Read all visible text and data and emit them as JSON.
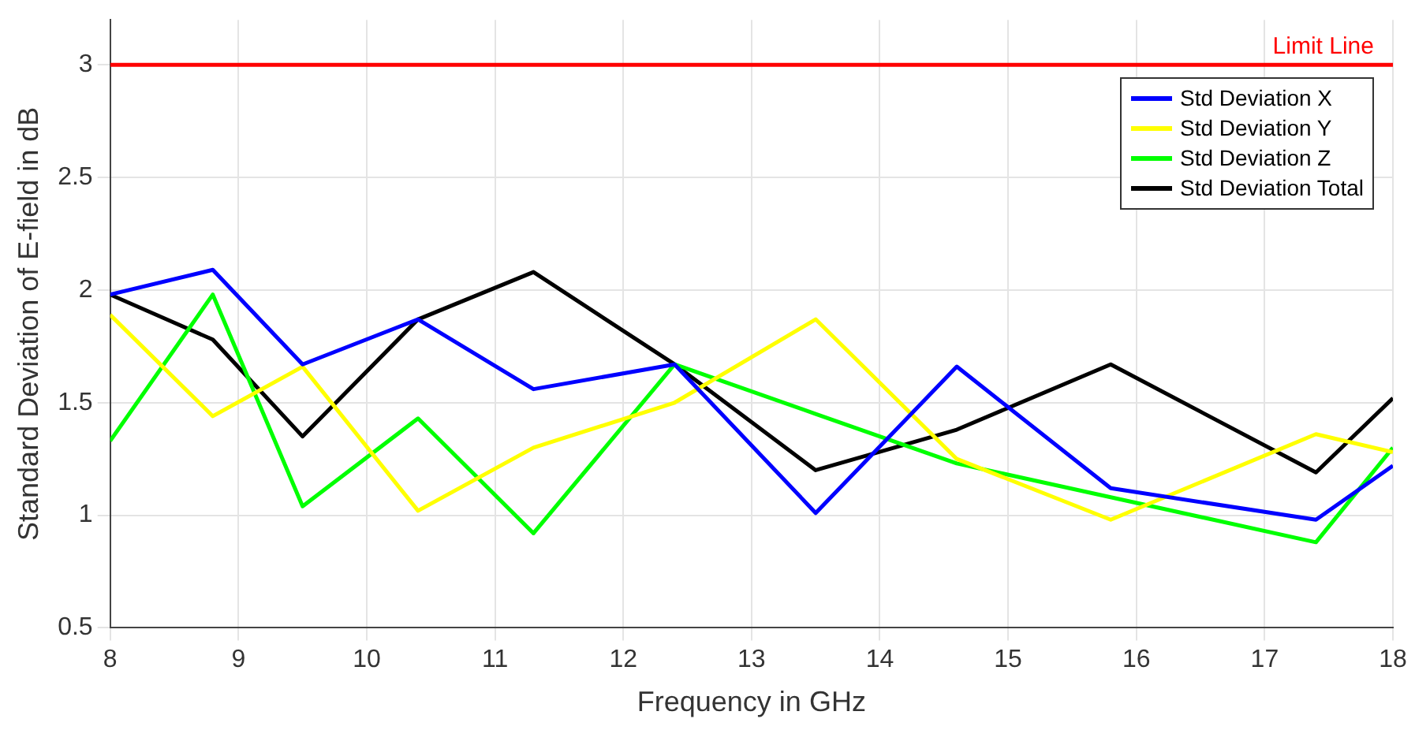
{
  "chart_data": {
    "type": "line",
    "xlabel": "Frequency in GHz",
    "ylabel": "Standard Deviation of E-field in dB",
    "x": [
      8,
      8.8,
      9.5,
      10.4,
      11.3,
      12.4,
      13.5,
      14.6,
      15.8,
      17.4,
      18
    ],
    "series": [
      {
        "name": "Std Deviation X",
        "color": "#0000ff",
        "values": [
          1.98,
          2.09,
          1.67,
          1.87,
          1.56,
          1.67,
          1.01,
          1.66,
          1.12,
          0.98,
          1.22
        ]
      },
      {
        "name": "Std Deviation Y",
        "color": "#ffff00",
        "values": [
          1.89,
          1.44,
          1.66,
          1.02,
          1.3,
          1.5,
          1.87,
          1.25,
          0.98,
          1.36,
          1.28
        ]
      },
      {
        "name": "Std Deviation Z",
        "color": "#00ff00",
        "values": [
          1.33,
          1.98,
          1.04,
          1.43,
          0.92,
          1.67,
          1.45,
          1.23,
          1.08,
          0.88,
          1.3
        ]
      },
      {
        "name": "Std Deviation Total",
        "color": "#000000",
        "values": [
          1.98,
          1.78,
          1.35,
          1.87,
          2.08,
          1.67,
          1.2,
          1.38,
          1.67,
          1.19,
          1.52
        ]
      }
    ],
    "ref_lines": [
      {
        "axis": "y",
        "value": 3,
        "label": "Limit Line",
        "color": "#ff0000"
      }
    ],
    "xlim": [
      8,
      18
    ],
    "xticks": [
      8,
      9,
      10,
      11,
      12,
      13,
      14,
      15,
      16,
      17,
      18
    ],
    "ylim": [
      0.5,
      3.2
    ],
    "yticks": [
      0.5,
      1,
      1.5,
      2,
      2.5,
      3
    ],
    "grid": true,
    "legend": "top right",
    "marker": "none",
    "line_style": "solid"
  }
}
